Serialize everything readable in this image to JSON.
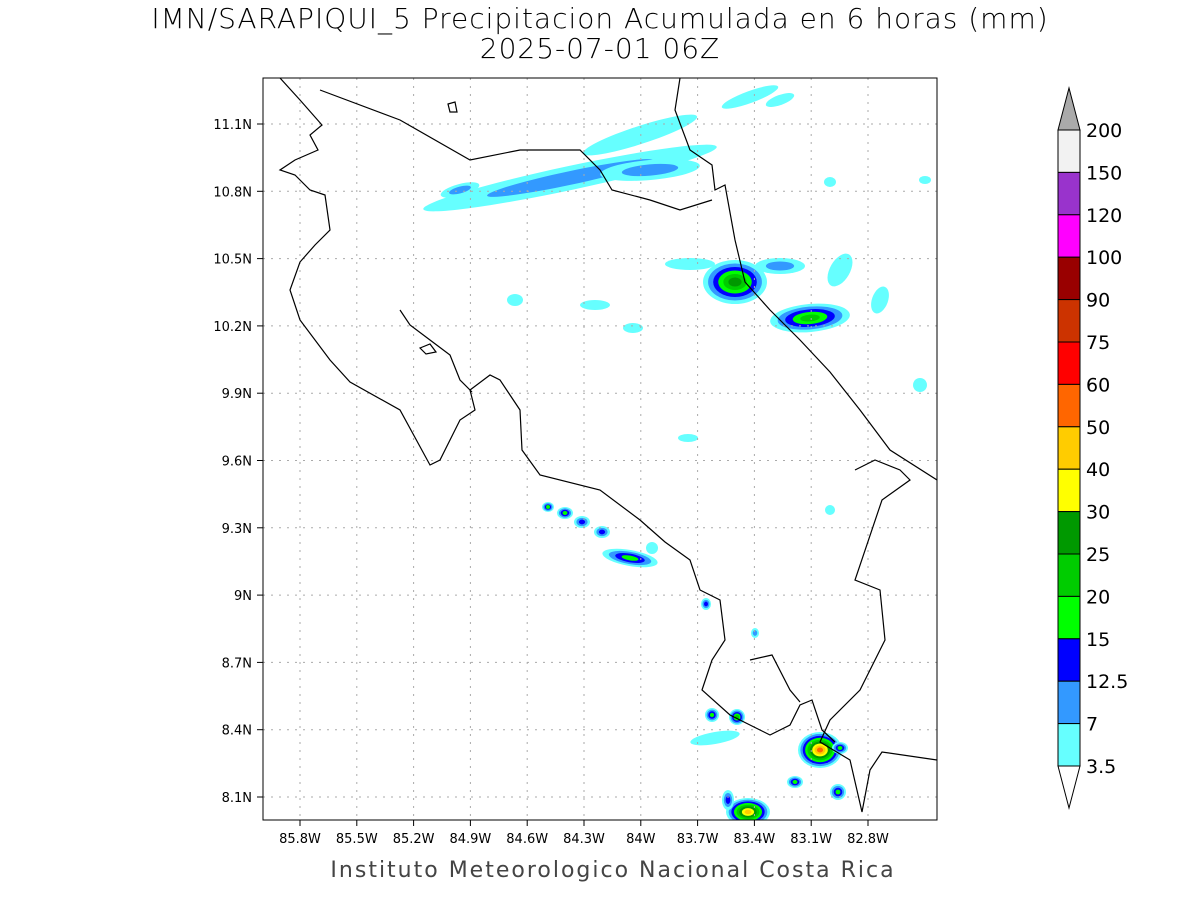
{
  "title_line1": "IMN/SARAPIQUI_5 Precipitacion Acumulada en 6 horas (mm)",
  "title_line2": "2025-07-01 06Z",
  "footer": "Instituto Meteorologico Nacional Costa Rica",
  "lon_ticks": [
    "85.8W",
    "85.5W",
    "85.2W",
    "84.9W",
    "84.6W",
    "84.3W",
    "84W",
    "83.7W",
    "83.4W",
    "83.1W",
    "82.8W"
  ],
  "lat_ticks": [
    "11.1N",
    "10.8N",
    "10.5N",
    "10.2N",
    "9.9N",
    "9.6N",
    "9.3N",
    "9N",
    "8.7N",
    "8.4N",
    "8.1N"
  ],
  "colorbar": {
    "labels": [
      "3.5",
      "7",
      "12.5",
      "15",
      "20",
      "25",
      "30",
      "40",
      "50",
      "60",
      "75",
      "90",
      "100",
      "120",
      "150",
      "200"
    ],
    "colors": [
      "#66ffff",
      "#3399ff",
      "#0000ff",
      "#00ff00",
      "#00cc00",
      "#009900",
      "#ffff00",
      "#ffcc00",
      "#ff6600",
      "#ff0000",
      "#cc3300",
      "#990000",
      "#ff00ff",
      "#9933cc",
      "#f2f2f2"
    ],
    "over_color": "#aaaaaa",
    "under_color": "#ffffff"
  }
}
